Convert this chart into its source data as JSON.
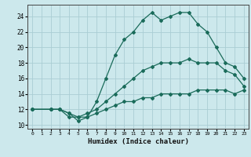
{
  "xlabel": "Humidex (Indice chaleur)",
  "background_color": "#cce8ec",
  "grid_color": "#aacdd4",
  "line_color": "#1a6b5a",
  "xlim": [
    -0.5,
    23.5
  ],
  "ylim": [
    9.5,
    25.5
  ],
  "xticks": [
    0,
    1,
    2,
    3,
    4,
    5,
    6,
    7,
    8,
    9,
    10,
    11,
    12,
    13,
    14,
    15,
    16,
    17,
    18,
    19,
    20,
    21,
    22,
    23
  ],
  "yticks": [
    10,
    12,
    14,
    16,
    18,
    20,
    22,
    24
  ],
  "series": [
    {
      "x": [
        0,
        2,
        3,
        4,
        5,
        6,
        7,
        8,
        9,
        10,
        11,
        12,
        13,
        14,
        15,
        16,
        17,
        18,
        19,
        20,
        21,
        22,
        23
      ],
      "y": [
        12,
        12,
        12,
        11,
        11,
        11,
        11.5,
        12,
        12.5,
        13,
        13,
        13.5,
        13.5,
        14,
        14,
        14,
        14,
        14.5,
        14.5,
        14.5,
        14.5,
        14,
        14.5
      ]
    },
    {
      "x": [
        0,
        2,
        3,
        4,
        5,
        6,
        7,
        8,
        9,
        10,
        11,
        12,
        13,
        14,
        15,
        16,
        17,
        18,
        19,
        20,
        21,
        22,
        23
      ],
      "y": [
        12,
        12,
        12,
        11.5,
        11,
        11.5,
        12,
        13,
        14,
        15,
        16,
        17,
        17.5,
        18,
        18,
        18,
        18.5,
        18,
        18,
        18,
        17,
        16.5,
        15
      ]
    },
    {
      "x": [
        0,
        2,
        3,
        4,
        5,
        6,
        7,
        8,
        9,
        10,
        11,
        12,
        13,
        14,
        15,
        16,
        17,
        18,
        19,
        20,
        21,
        22,
        23
      ],
      "y": [
        12,
        12,
        12,
        11.5,
        10.5,
        11,
        13,
        16,
        19,
        21,
        22,
        23.5,
        24.5,
        23.5,
        24,
        24.5,
        24.5,
        23,
        22,
        20,
        18,
        17.5,
        16
      ]
    }
  ]
}
